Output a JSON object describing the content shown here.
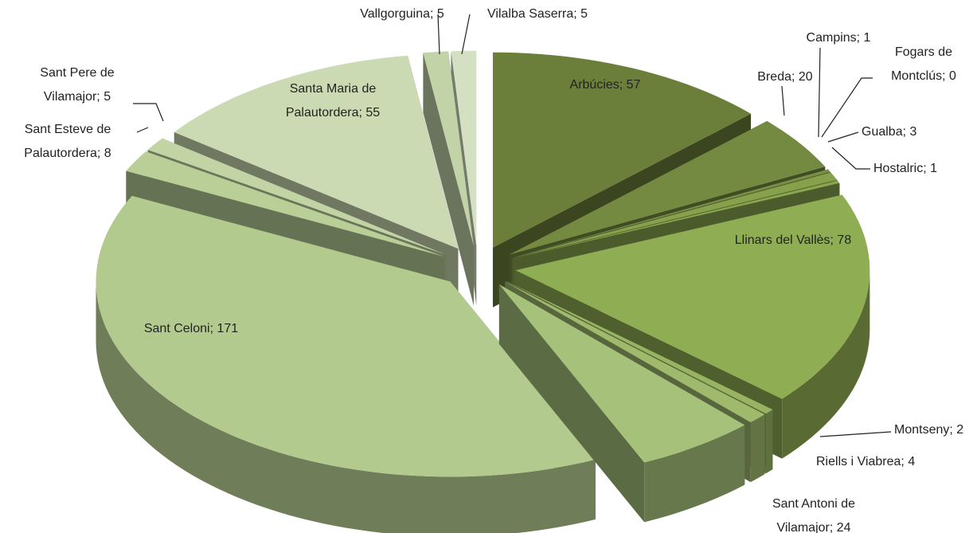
{
  "chart_data": {
    "type": "pie",
    "three_d": true,
    "exploded": true,
    "values": [
      57,
      20,
      1,
      0,
      3,
      1,
      78,
      2,
      4,
      24,
      171,
      8,
      5,
      55,
      5,
      5
    ],
    "value_labels": [
      "Arbúcies; 57",
      "Breda; 20",
      "Campins; 1",
      "Fogars de Montclús; 0",
      "Gualba; 3",
      "Hostalric; 1",
      "Llinars del Vallès; 78",
      "Montseny; 2",
      "Riells i Viabrea; 4",
      "Sant Antoni de Vilamajor; 24",
      "Sant Celoni; 171",
      "Sant Esteve de Palautordera; 8",
      "Sant Pere de Vilamajor; 5",
      "Santa Maria de Palautordera; 55",
      "Vallgorguina; 5",
      "Vilalba Saserra; 5"
    ],
    "colors": [
      "#6b7f3a",
      "#748a40",
      "#7a8f45",
      "#7f9449",
      "#86a04c",
      "#8aa64f",
      "#8fad52",
      "#98b462",
      "#9fba6d",
      "#a6c27a",
      "#b3ca8e",
      "#bacf98",
      "#c2d4a4",
      "#cbdab2",
      "#c3d3a8",
      "#d3e0c2"
    ]
  }
}
